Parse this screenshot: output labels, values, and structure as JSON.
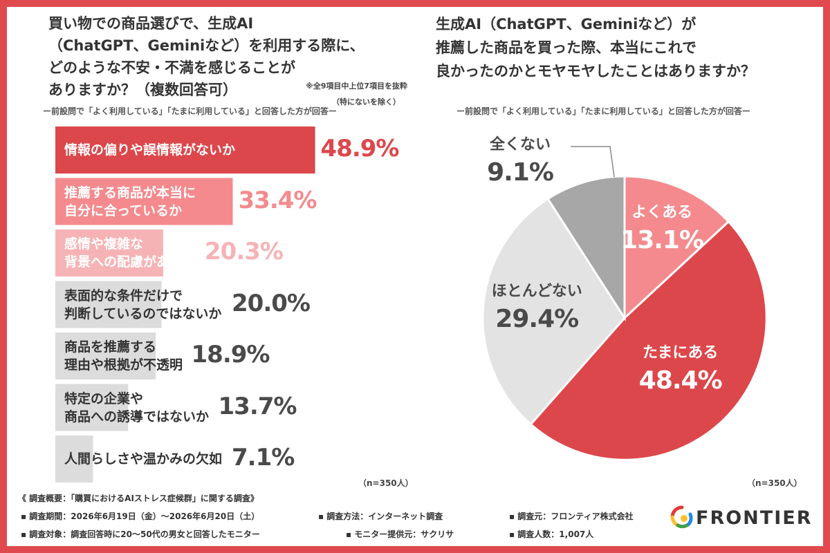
{
  "left": {
    "title_lines": [
      "買い物での商品選びで、生成AI",
      "（ChatGPT、Geminiなど）を利用する際に、",
      "どのような不安・不満を感じることが",
      "ありますか？（複数回答可）"
    ],
    "note": "※全9項目中上位7項目を抜粋",
    "note2": "（特にないを除く）",
    "subnote": "ー前設問で「よく利用している」「たまに利用している」と回答した方が回答ー",
    "n": "（n=350人）"
  },
  "right": {
    "title_lines": [
      "生成AI（ChatGPT、Geminiなど）が",
      "推薦した商品を買った際、本当にこれで",
      "良かったのかとモヤモヤしたことはありますか？"
    ],
    "subnote": "ー前設問で「よく利用している」「たまに利用している」と回答した方が回答ー",
    "n": "（n=350人）"
  },
  "chart_data": [
    {
      "type": "bar",
      "orientation": "horizontal",
      "categories": [
        "情報の偏りや誤情報がないか",
        "推薦する商品が本当に自分に合っているか",
        "感情や複雑な背景への配慮があるか",
        "表面的な条件だけで判断しているのではないか",
        "商品を推薦する理由や根拠が不透明",
        "特定の企業や商品への誘導ではないか",
        "人間らしさや温かみの欠如"
      ],
      "label_lines": [
        [
          "情報の偏りや誤情報がないか"
        ],
        [
          "推薦する商品が本当に",
          "自分に合っているか"
        ],
        [
          "感情や複雑な",
          "背景への配慮があるか"
        ],
        [
          "表面的な条件だけで",
          "判断しているのではないか"
        ],
        [
          "商品を推薦する",
          "理由や根拠が不透明"
        ],
        [
          "特定の企業や",
          "商品への誘導ではないか"
        ],
        [
          "人間らしさや温かみの欠如"
        ]
      ],
      "values": [
        48.9,
        33.4,
        20.3,
        20.0,
        18.9,
        13.7,
        7.1
      ],
      "value_labels": [
        "48.9%",
        "33.4%",
        "20.3%",
        "20.0%",
        "18.9%",
        "13.7%",
        "7.1%"
      ],
      "unit": "%",
      "colors": [
        "#dc474b",
        "#f48a8d",
        "#f6b3b5",
        "#dcdcdc",
        "#dcdcdc",
        "#dcdcdc",
        "#dcdcdc"
      ],
      "value_colors": [
        "#dc474b",
        "#f48a8d",
        "#f6b3b5",
        "#4a4a4a",
        "#4a4a4a",
        "#4a4a4a",
        "#4a4a4a"
      ],
      "label_colors": [
        "#ffffff",
        "#ffffff",
        "#ffffff",
        "#333333",
        "#333333",
        "#333333",
        "#333333"
      ],
      "xlim": [
        0,
        100
      ]
    },
    {
      "type": "pie",
      "labels": [
        "よくある",
        "たまにある",
        "ほとんどない",
        "全くない"
      ],
      "values": [
        13.1,
        48.4,
        29.4,
        9.1
      ],
      "value_labels": [
        "13.1%",
        "48.4%",
        "29.4%",
        "9.1%"
      ],
      "colors": [
        "#f48a8d",
        "#dc474b",
        "#e3e3e3",
        "#a7a7a7"
      ],
      "text_colors": [
        "#ffffff",
        "#ffffff",
        "#4a4a4a",
        "#4a4a4a"
      ],
      "start": "12 o'clock",
      "direction": "clockwise"
    }
  ],
  "footer": {
    "survey_title": "《 調査概要：「購買におけるAIストレス症候群」に関する調査》",
    "period": "▪ 調査期間：2026年6月19日（金）〜2026年6月20日（土）",
    "method": "▪ 調査方法：インターネット調査",
    "source": "▪ 調査元：フロンティア株式会社",
    "target": "▪ 調査対象：調査回答時に20〜50代の男女と回答したモニター",
    "provider": "▪ モニター提供元：サクリサ",
    "count": "▪ 調査人数：1,007人"
  },
  "logo": {
    "text": "FRONTIER",
    "icon": "frontier-logo-icon",
    "colors": [
      "#e53935",
      "#fbc02d",
      "#43a047",
      "#1e88e5"
    ]
  }
}
